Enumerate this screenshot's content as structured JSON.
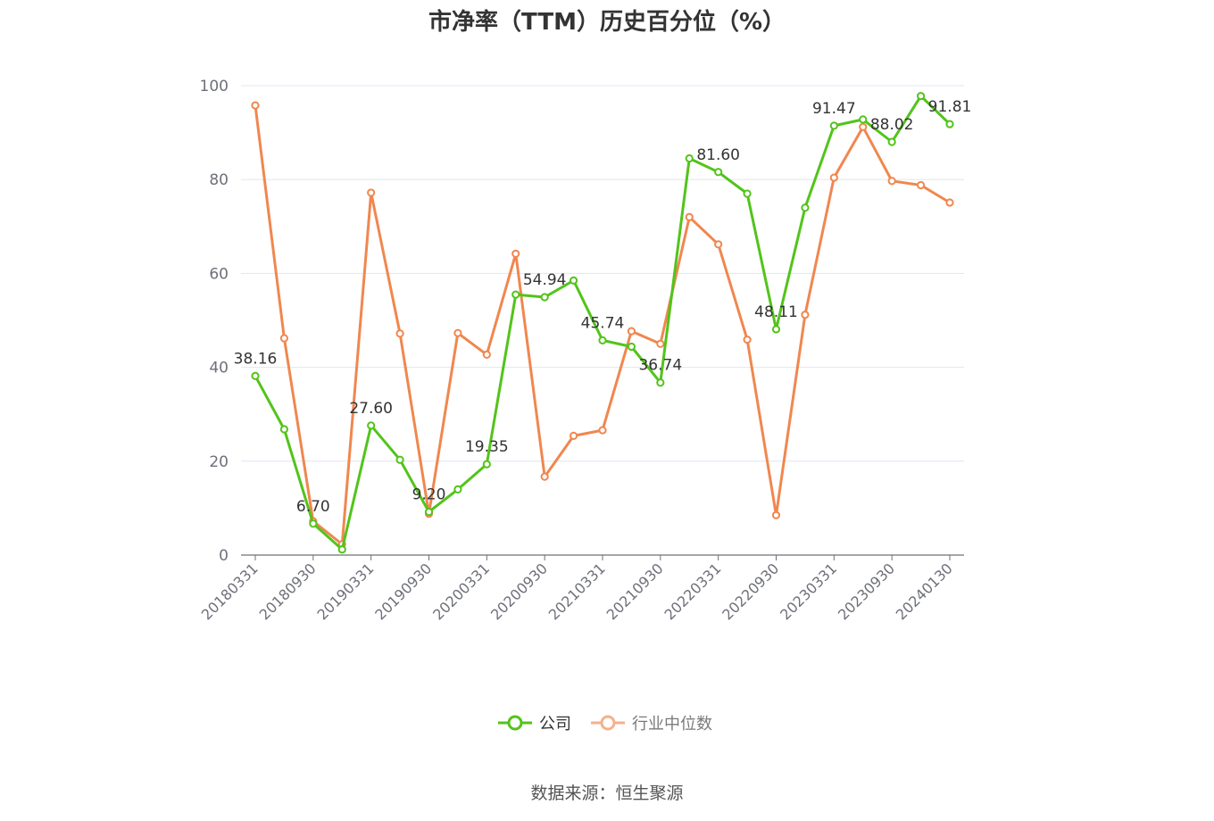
{
  "title": "市净率（TTM）历史百分位（%）",
  "source": "数据来源：恒生聚源",
  "colors": {
    "company": "#52c41a",
    "industry": "#f0874f",
    "grid": "#e0e6f1",
    "axis": "#6e7079"
  },
  "chart_data": {
    "type": "line",
    "title": "市净率（TTM）历史百分位（%）",
    "xlabel": "",
    "ylabel": "",
    "ylim": [
      0,
      100
    ],
    "yticks": [
      0,
      20,
      40,
      60,
      80,
      100
    ],
    "grid": true,
    "legend_position": "bottom-center",
    "x": [
      "20180331",
      "20180630",
      "20180930",
      "20181231",
      "20190331",
      "20190630",
      "20190930",
      "20191231",
      "20200331",
      "20200630",
      "20200930",
      "20201231",
      "20210331",
      "20210630",
      "20210930",
      "20211231",
      "20220331",
      "20220630",
      "20220930",
      "20221231",
      "20230331",
      "20230630",
      "20230930",
      "20231231",
      "20240130"
    ],
    "xtick_labels": [
      "20180331",
      "20180930",
      "20190331",
      "20190930",
      "20200331",
      "20200930",
      "20210331",
      "20210930",
      "20220331",
      "20220930",
      "20230331",
      "20230930",
      "20240130"
    ],
    "series": [
      {
        "name": "公司",
        "values": [
          38.16,
          26.8,
          6.7,
          1.2,
          27.6,
          20.3,
          9.2,
          14.0,
          19.35,
          55.5,
          54.94,
          58.5,
          45.74,
          44.4,
          36.74,
          84.5,
          81.6,
          77.0,
          48.11,
          74.0,
          91.47,
          92.8,
          88.02,
          97.8,
          91.81
        ],
        "labels": {
          "0": "38.16",
          "2": "6.70",
          "4": "27.60",
          "6": "9.20",
          "8": "19.35",
          "10": "54.94",
          "12": "45.74",
          "14": "36.74",
          "16": "81.60",
          "18": "48.11",
          "20": "91.47",
          "22": "88.02",
          "24": "91.81"
        }
      },
      {
        "name": "行业中位数",
        "values": [
          95.8,
          46.2,
          7.2,
          2.3,
          77.2,
          47.2,
          8.8,
          47.3,
          42.7,
          64.2,
          16.7,
          25.4,
          26.6,
          47.7,
          45.0,
          72.0,
          66.2,
          45.9,
          8.5,
          51.2,
          80.4,
          91.2,
          79.7,
          78.8,
          75.1
        ]
      }
    ]
  }
}
